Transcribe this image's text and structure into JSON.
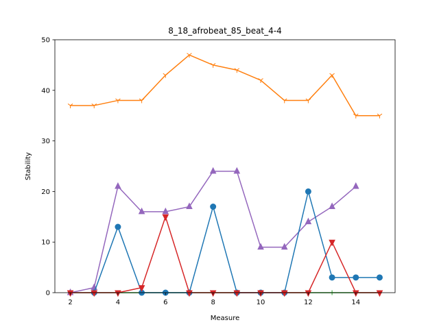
{
  "chart_data": {
    "type": "line",
    "title": "8_18_afrobeat_85_beat_4-4",
    "xlabel": "Measure",
    "ylabel": "Stability",
    "xlim": [
      1.35,
      15.65
    ],
    "ylim": [
      0,
      50
    ],
    "xticks": [
      2,
      4,
      6,
      8,
      10,
      12,
      14
    ],
    "yticks": [
      0,
      10,
      20,
      30,
      40,
      50
    ],
    "grid": false,
    "series": [
      {
        "color": "#ff7f0e",
        "marker": "tri_down",
        "x": [
          2,
          3,
          4,
          5,
          6,
          7,
          8,
          9,
          10,
          11,
          12,
          13,
          14,
          15
        ],
        "y": [
          37,
          37,
          38,
          38,
          43,
          47,
          45,
          44,
          42,
          38,
          38,
          43,
          35,
          35
        ]
      },
      {
        "color": "#2ca02c",
        "marker": "plus",
        "x": [
          2,
          3,
          4,
          5,
          6,
          7,
          8,
          9,
          10,
          11,
          12,
          13,
          14,
          15
        ],
        "y": [
          0,
          0,
          0,
          0,
          0,
          0,
          0,
          0,
          0,
          0,
          0,
          0,
          0,
          0
        ]
      },
      {
        "color": "#9467bd",
        "marker": "triangle_up",
        "x": [
          2,
          3,
          4,
          5,
          6,
          7,
          8,
          9,
          10,
          11,
          12,
          13,
          14
        ],
        "y": [
          0,
          1,
          21,
          16,
          16,
          17,
          24,
          24,
          9,
          9,
          14,
          17,
          21
        ]
      },
      {
        "color": "#1f77b4",
        "marker": "circle",
        "x": [
          3,
          4,
          5,
          6,
          7,
          8,
          9,
          10,
          11,
          12,
          13,
          14,
          15
        ],
        "y": [
          0,
          13,
          0,
          0,
          0,
          17,
          0,
          0,
          0,
          20,
          3,
          3,
          3
        ]
      },
      {
        "color": "#d62728",
        "marker": "triangle_down",
        "x": [
          2,
          3,
          4,
          5,
          6,
          7,
          8,
          9,
          10,
          11,
          12,
          13,
          14,
          15
        ],
        "y": [
          0,
          0,
          0,
          1,
          15,
          0,
          0,
          0,
          0,
          0,
          0,
          10,
          0,
          0
        ]
      }
    ]
  }
}
